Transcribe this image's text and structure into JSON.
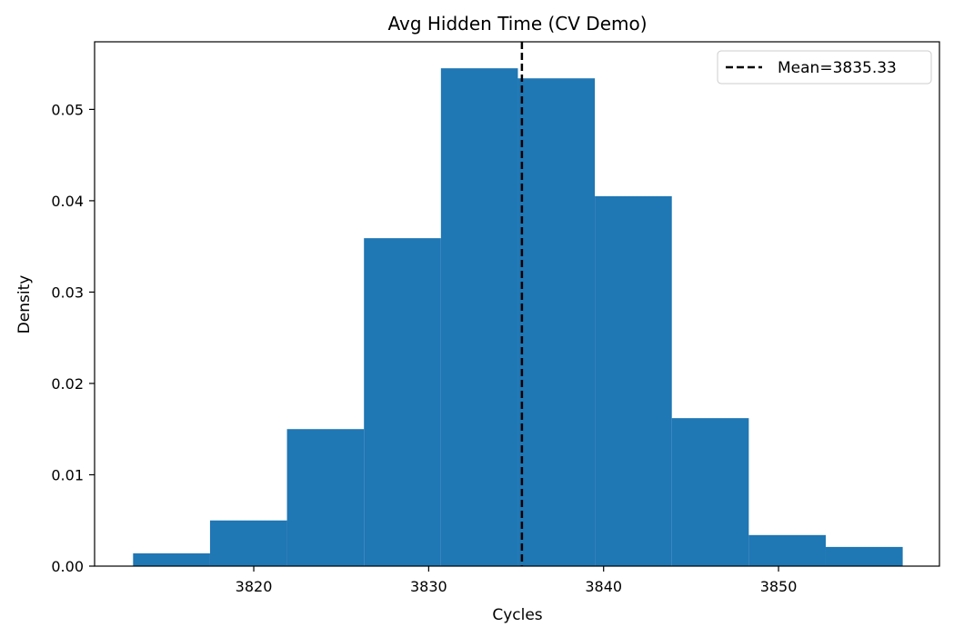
{
  "chart_data": {
    "type": "bar",
    "subtype": "histogram",
    "title": "Avg Hidden Time (CV Demo)",
    "xlabel": "Cycles",
    "ylabel": "Density",
    "xlim": [
      3810.9,
      3859.2
    ],
    "ylim": [
      0,
      0.0574
    ],
    "x_ticks": [
      3820,
      3830,
      3840,
      3850
    ],
    "x_tick_labels": [
      "3820",
      "3830",
      "3840",
      "3850"
    ],
    "y_ticks": [
      0,
      0.01,
      0.02,
      0.03,
      0.04,
      0.05
    ],
    "y_tick_labels": [
      "0.00",
      "0.01",
      "0.02",
      "0.03",
      "0.04",
      "0.05"
    ],
    "bin_edges": [
      3813.1,
      3817.5,
      3821.9,
      3826.3,
      3830.7,
      3835.1,
      3839.5,
      3843.9,
      3848.3,
      3852.7,
      3857.1
    ],
    "values": [
      0.0014,
      0.005,
      0.015,
      0.0359,
      0.0545,
      0.0534,
      0.0405,
      0.0162,
      0.0034,
      0.0021
    ],
    "bar_color": "#1f77b4",
    "grid": false,
    "reference_line": {
      "x": 3835.33,
      "style": "dashed",
      "color": "#000000",
      "label": "Mean=3835.33"
    },
    "legend": {
      "position": "top-right",
      "entries": [
        "Mean=3835.33"
      ]
    }
  }
}
